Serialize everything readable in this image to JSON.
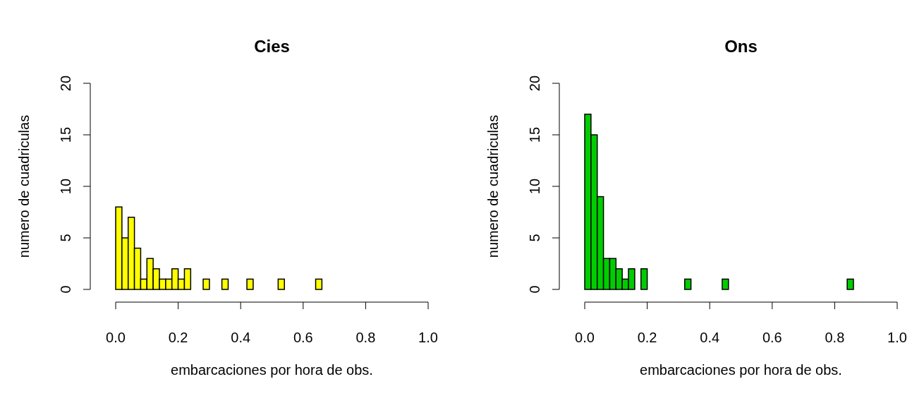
{
  "chart_data": [
    {
      "type": "histogram",
      "title": "Cies",
      "xlabel": "embarcaciones por hora de obs.",
      "ylabel": "numero de cuadriculas",
      "color": "#ffff00",
      "bins": [
        0,
        0.02,
        0.04,
        0.06,
        0.08,
        0.1,
        0.12,
        0.14,
        0.16,
        0.18,
        0.2,
        0.22,
        0.24,
        0.26,
        0.28,
        0.3,
        0.32,
        0.34,
        0.36,
        0.38,
        0.4,
        0.42,
        0.44,
        0.46,
        0.48,
        0.5,
        0.52,
        0.54,
        0.56,
        0.58,
        0.6,
        0.62,
        0.64,
        0.66
      ],
      "values": [
        8,
        5,
        7,
        4,
        1,
        3,
        2,
        1,
        1,
        2,
        1,
        2,
        0,
        0,
        1,
        0,
        0,
        1,
        0,
        0,
        0,
        1,
        0,
        0,
        0,
        0,
        1,
        0,
        0,
        0,
        0,
        0,
        1
      ],
      "xlim": [
        0,
        1
      ],
      "ylim": [
        0,
        20
      ],
      "xticks": [
        {
          "value": 0,
          "label": "0.0"
        },
        {
          "value": 0.2,
          "label": "0.2"
        },
        {
          "value": 0.4,
          "label": "0.4"
        },
        {
          "value": 0.6,
          "label": "0.6"
        },
        {
          "value": 0.8,
          "label": "0.8"
        },
        {
          "value": 1,
          "label": "1.0"
        }
      ],
      "yticks": [
        0,
        5,
        10,
        15,
        20
      ]
    },
    {
      "type": "histogram",
      "title": "Ons",
      "xlabel": "embarcaciones por hora de obs.",
      "ylabel": "numero de cuadriculas",
      "color": "#00cd00",
      "bins": [
        0,
        0.02,
        0.04,
        0.06,
        0.08,
        0.1,
        0.12,
        0.14,
        0.16,
        0.18,
        0.2,
        0.22,
        0.24,
        0.26,
        0.28,
        0.3,
        0.32,
        0.34,
        0.36,
        0.38,
        0.4,
        0.42,
        0.44,
        0.46,
        0.48,
        0.5,
        0.52,
        0.54,
        0.56,
        0.58,
        0.6,
        0.62,
        0.64,
        0.66,
        0.68,
        0.7,
        0.72,
        0.74,
        0.76,
        0.78,
        0.8,
        0.82,
        0.84,
        0.86
      ],
      "values": [
        17,
        15,
        9,
        3,
        3,
        2,
        1,
        2,
        0,
        2,
        0,
        0,
        0,
        0,
        0,
        0,
        1,
        0,
        0,
        0,
        0,
        0,
        1,
        0,
        0,
        0,
        0,
        0,
        0,
        0,
        0,
        0,
        0,
        0,
        0,
        0,
        0,
        0,
        0,
        0,
        0,
        0,
        1
      ],
      "xlim": [
        0,
        1
      ],
      "ylim": [
        0,
        20
      ],
      "xticks": [
        {
          "value": 0,
          "label": "0.0"
        },
        {
          "value": 0.2,
          "label": "0.2"
        },
        {
          "value": 0.4,
          "label": "0.4"
        },
        {
          "value": 0.6,
          "label": "0.6"
        },
        {
          "value": 0.8,
          "label": "0.8"
        },
        {
          "value": 1,
          "label": "1.0"
        }
      ],
      "yticks": [
        0,
        5,
        10,
        15,
        20
      ]
    }
  ]
}
